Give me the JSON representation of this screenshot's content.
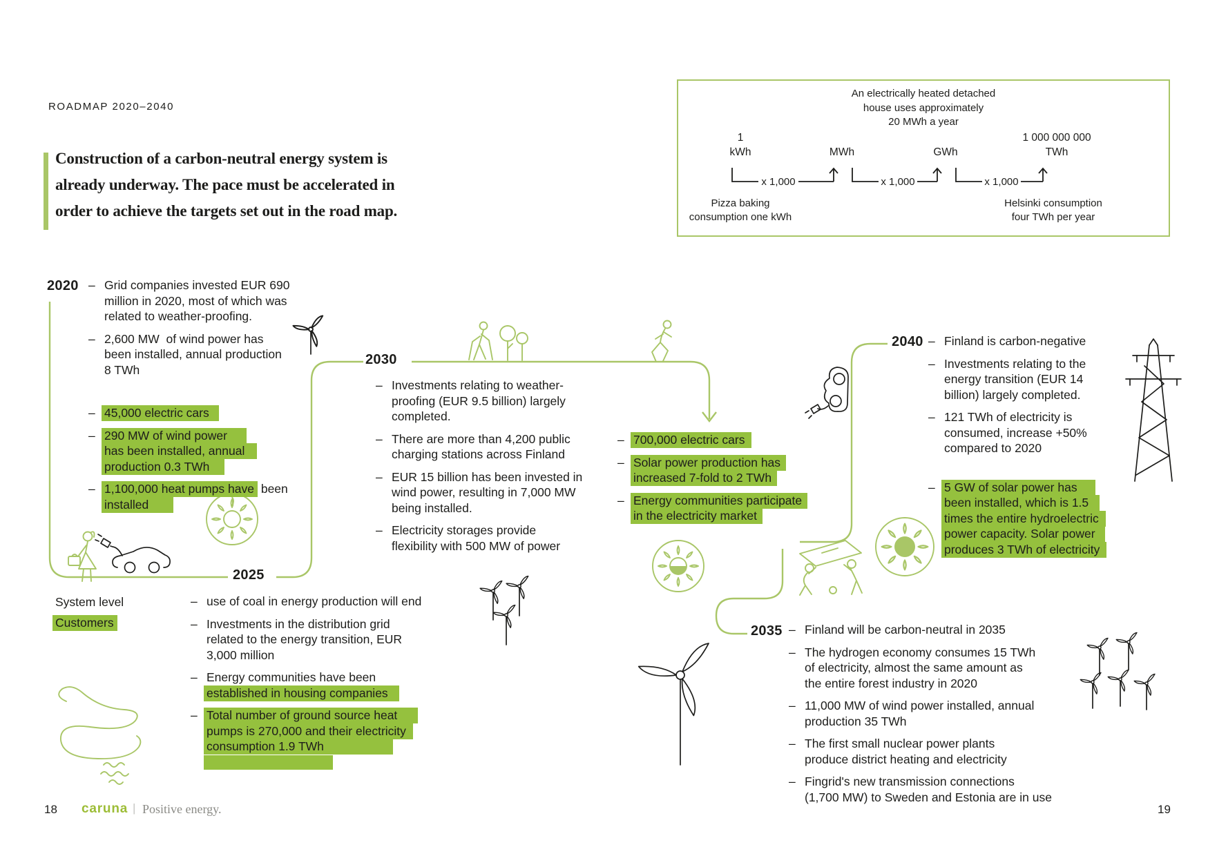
{
  "colors": {
    "line_green": "#a9c667",
    "highlight_green": "#95c13e",
    "text_black": "#1d1d1b",
    "tagline_gray": "#8b8b86",
    "brand_green": "#9dbd37"
  },
  "header": {
    "eyebrow": "ROADMAP 2020–2040",
    "quote_lines": [
      "Construction of a carbon-neutral energy system is",
      "already underway. The pace must be accelerated in",
      "order to achieve the targets set out in the road map."
    ]
  },
  "unit_box": {
    "title_lines": [
      "An electrically heated detached",
      "house uses approximately",
      "20 MWh a year"
    ],
    "units": [
      {
        "value": "1",
        "label": "kWh"
      },
      {
        "value": "",
        "label": "MWh"
      },
      {
        "value": "",
        "label": "GWh"
      },
      {
        "value": "1 000 000 000",
        "label": "TWh"
      }
    ],
    "multiplier": "x 1,000",
    "left_note_lines": [
      "Pizza baking",
      "consumption one kWh"
    ],
    "right_note_lines": [
      "Helsinki consumption",
      "four TWh per year"
    ]
  },
  "legend": {
    "system_level": "System level",
    "customers": "Customers"
  },
  "milestones": [
    {
      "id": "y2020",
      "year": "2020",
      "bullets": [
        {
          "lines": [
            [
              {
                "t": "Grid companies invested EUR 690",
                "h": false
              }
            ],
            [
              {
                "t": "million in 2020, most of which was",
                "h": false
              }
            ],
            [
              {
                "t": "related to weather-proofing.",
                "h": false
              }
            ]
          ]
        },
        {
          "lines": [
            [
              {
                "t": "2,600 MW  of wind power has",
                "h": false
              }
            ],
            [
              {
                "t": "been installed, annual production",
                "h": false
              }
            ],
            [
              {
                "t": "8 TWh",
                "h": false
              }
            ]
          ]
        },
        {
          "gap": 40,
          "lines": [
            [
              {
                "t": "45,000 electric cars",
                "h": true,
                "pr": 14
              }
            ]
          ]
        },
        {
          "lines": [
            [
              {
                "t": "290 MW of wind power",
                "h": true,
                "pr": 28
              }
            ],
            [
              {
                "t": "has been installed, annual",
                "h": true,
                "pr": 18
              }
            ],
            [
              {
                "t": "production 0.3 TWh",
                "h": true,
                "pr": 22
              }
            ]
          ]
        },
        {
          "lines": [
            [
              {
                "t": "1,100,000 heat pumps have",
                "h": true
              },
              {
                "t": " been",
                "h": false
              }
            ],
            [
              {
                "t": "installed",
                "h": true,
                "pr": 36
              }
            ]
          ]
        }
      ]
    },
    {
      "id": "y2025",
      "year": "2025",
      "bullets": [
        {
          "lines": [
            [
              {
                "t": "use of coal in energy production will end",
                "h": false
              }
            ]
          ]
        },
        {
          "lines": [
            [
              {
                "t": "Investments in the distribution grid",
                "h": false
              }
            ],
            [
              {
                "t": "related to the energy transition, EUR",
                "h": false
              }
            ],
            [
              {
                "t": "3,000 million",
                "h": false
              }
            ]
          ]
        },
        {
          "lines": [
            [
              {
                "t": "Energy communities have been",
                "h": false
              }
            ],
            [
              {
                "t": "established in housing companies",
                "h": true,
                "pr": 16
              }
            ]
          ]
        },
        {
          "lines": [
            [
              {
                "t": "Total number of ground source heat",
                "h": true,
                "pr": 30
              }
            ],
            [
              {
                "t": "pumps is 270,000 and their electricity",
                "h": true,
                "pr": 10
              }
            ],
            [
              {
                "t": "consumption 1.9 TWh",
                "h": true,
                "pr": 100
              }
            ],
            [
              {
                "t": "",
                "h": true,
                "w": 178
              }
            ]
          ]
        }
      ]
    },
    {
      "id": "y2030",
      "year": "2030",
      "bullets": [
        {
          "lines": [
            [
              {
                "t": "Investments relating to weather-",
                "h": false
              }
            ],
            [
              {
                "t": "proofing (EUR 9.5 billion) largely",
                "h": false
              }
            ],
            [
              {
                "t": "completed.",
                "h": false
              }
            ]
          ]
        },
        {
          "lines": [
            [
              {
                "t": "There are more than 4,200 public",
                "h": false
              }
            ],
            [
              {
                "t": "charging stations across Finland",
                "h": false
              }
            ]
          ]
        },
        {
          "lines": [
            [
              {
                "t": "EUR 15 billion has been invested in",
                "h": false
              }
            ],
            [
              {
                "t": "wind power, resulting in 7,000 MW",
                "h": false
              }
            ],
            [
              {
                "t": "being installed.",
                "h": false
              }
            ]
          ]
        },
        {
          "lines": [
            [
              {
                "t": "Electricity storages provide",
                "h": false
              }
            ],
            [
              {
                "t": "flexibility with 500 MW of power",
                "h": false
              }
            ]
          ]
        }
      ]
    },
    {
      "id": "trans",
      "year": "",
      "bullets": [
        {
          "lines": [
            [
              {
                "t": "700,000 electric cars",
                "h": true,
                "pr": 10
              }
            ]
          ]
        },
        {
          "lines": [
            [
              {
                "t": "Solar power production has",
                "h": true,
                "pr": 8
              }
            ],
            [
              {
                "t": "increased 7-fold to 2 TWh",
                "h": true,
                "pr": 8
              }
            ]
          ]
        },
        {
          "lines": [
            [
              {
                "t": "Energy communities participate",
                "h": true,
                "pr": 8
              }
            ],
            [
              {
                "t": "in the electricity market",
                "h": true,
                "pr": 8
              }
            ]
          ]
        }
      ]
    },
    {
      "id": "y2035",
      "year": "2035",
      "bullets": [
        {
          "lines": [
            [
              {
                "t": "Finland will be carbon-neutral in 2035",
                "h": false
              }
            ]
          ]
        },
        {
          "lines": [
            [
              {
                "t": "The hydrogen economy consumes 15 TWh",
                "h": false
              }
            ],
            [
              {
                "t": "of electricity, almost the same amount as",
                "h": false
              }
            ],
            [
              {
                "t": "the entire forest industry in 2020",
                "h": false
              }
            ]
          ]
        },
        {
          "lines": [
            [
              {
                "t": "11,000 MW of wind power installed, annual",
                "h": false
              }
            ],
            [
              {
                "t": "production 35 TWh",
                "h": false
              }
            ]
          ]
        },
        {
          "lines": [
            [
              {
                "t": "The first small nuclear power plants",
                "h": false
              }
            ],
            [
              {
                "t": "produce district heating and electricity",
                "h": false
              }
            ]
          ]
        },
        {
          "lines": [
            [
              {
                "t": "Fingrid's new transmission connections",
                "h": false
              }
            ],
            [
              {
                "t": "(1,700 MW) to Sweden and Estonia are in use",
                "h": false
              }
            ]
          ]
        }
      ]
    },
    {
      "id": "y2040",
      "year": "2040",
      "bullets": [
        {
          "lines": [
            [
              {
                "t": "Finland is carbon-negative",
                "h": false
              }
            ]
          ]
        },
        {
          "lines": [
            [
              {
                "t": "Investments relating to the",
                "h": false
              }
            ],
            [
              {
                "t": "energy transition (EUR 14",
                "h": false
              }
            ],
            [
              {
                "t": "billion) largely completed.",
                "h": false
              }
            ]
          ]
        },
        {
          "lines": [
            [
              {
                "t": "121 TWh of electricity is",
                "h": false
              }
            ],
            [
              {
                "t": "consumed, increase +50%",
                "h": false
              }
            ],
            [
              {
                "t": "compared to 2020",
                "h": false
              }
            ]
          ]
        },
        {
          "gap": 34,
          "lines": [
            [
              {
                "t": "5 GW of solar power has",
                "h": true,
                "pr": 26
              }
            ],
            [
              {
                "t": "been installed, which is 1.5",
                "h": true,
                "pr": 16
              }
            ],
            [
              {
                "t": "times the entire hydroelectric",
                "h": true,
                "pr": 10
              }
            ],
            [
              {
                "t": "power capacity. Solar power",
                "h": true,
                "pr": 14
              }
            ],
            [
              {
                "t": "produces 3 TWh of electricity",
                "h": true,
                "pr": 10
              }
            ]
          ]
        }
      ]
    }
  ],
  "illustrations": [
    "wind-turbine-icon",
    "solar-sun-icon",
    "customer-woman-icon",
    "electric-car-charging-icon",
    "swan-icon",
    "hiker-icon",
    "runner-icon",
    "solar-installation-icon",
    "power-pylon-icon",
    "wind-farm-icon",
    "charging-cable-car-icon"
  ],
  "footer": {
    "left_page": "18",
    "brand": "caruna",
    "separator": "|",
    "tagline": "Positive energy.",
    "right_page": "19"
  }
}
